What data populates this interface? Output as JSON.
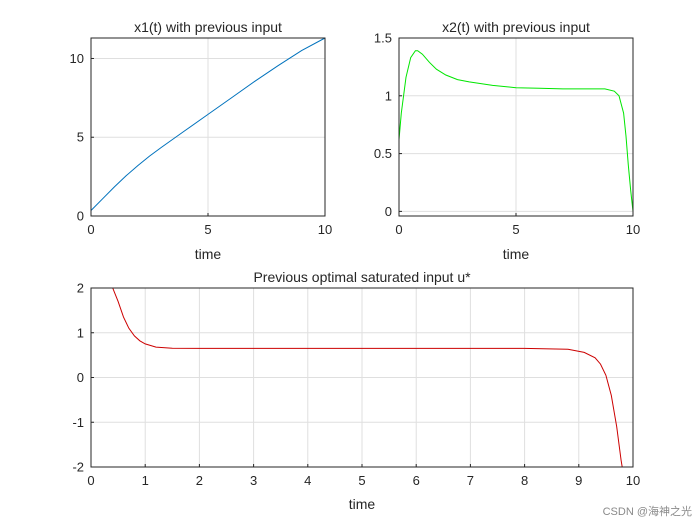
{
  "chart_data": [
    {
      "id": "x1",
      "type": "line",
      "title": "x1(t) with previous input",
      "xlabel": "time",
      "ylabel": "",
      "xlim": [
        0,
        10
      ],
      "ylim": [
        0,
        11.3
      ],
      "xticks": [
        0,
        5,
        10
      ],
      "yticks": [
        0,
        5,
        10
      ],
      "grid": true,
      "series": [
        {
          "name": "x1",
          "color": "#0072bd",
          "x": [
            0,
            0.5,
            1,
            1.5,
            2,
            2.5,
            3,
            4,
            5,
            6,
            7,
            8,
            9,
            10
          ],
          "y": [
            0.35,
            1.1,
            1.85,
            2.55,
            3.2,
            3.8,
            4.35,
            5.4,
            6.45,
            7.5,
            8.55,
            9.55,
            10.5,
            11.3
          ]
        }
      ]
    },
    {
      "id": "x2",
      "type": "line",
      "title": "x2(t) with previous input",
      "xlabel": "time",
      "ylabel": "",
      "xlim": [
        0,
        10
      ],
      "ylim": [
        -0.04,
        1.5
      ],
      "xticks": [
        0,
        5,
        10
      ],
      "yticks": [
        0,
        0.5,
        1,
        1.5
      ],
      "grid": true,
      "series": [
        {
          "name": "x2",
          "color": "#00e600",
          "x": [
            0,
            0.1,
            0.3,
            0.5,
            0.7,
            0.8,
            1,
            1.3,
            1.6,
            2,
            2.5,
            3,
            4,
            5,
            6,
            7,
            8,
            8.8,
            9.2,
            9.4,
            9.6,
            9.7,
            9.8,
            9.9,
            10
          ],
          "y": [
            0.62,
            0.85,
            1.16,
            1.33,
            1.39,
            1.39,
            1.36,
            1.29,
            1.23,
            1.18,
            1.14,
            1.12,
            1.09,
            1.07,
            1.065,
            1.06,
            1.06,
            1.06,
            1.04,
            1.0,
            0.85,
            0.65,
            0.4,
            0.18,
            0.0
          ]
        }
      ]
    },
    {
      "id": "u",
      "type": "line",
      "title": "Previous optimal saturated input u*",
      "xlabel": "time",
      "ylabel": "",
      "xlim": [
        0,
        10
      ],
      "ylim": [
        -2,
        2
      ],
      "xticks": [
        0,
        1,
        2,
        3,
        4,
        5,
        6,
        7,
        8,
        9,
        10
      ],
      "yticks": [
        -2,
        -1,
        0,
        1,
        2
      ],
      "grid": true,
      "series": [
        {
          "name": "u*",
          "color": "#cc0000",
          "x": [
            0,
            0.4,
            0.5,
            0.6,
            0.7,
            0.8,
            0.9,
            1.0,
            1.2,
            1.5,
            2,
            3,
            4,
            5,
            6,
            7,
            8,
            8.8,
            9.1,
            9.3,
            9.4,
            9.5,
            9.6,
            9.7,
            9.78,
            9.8
          ],
          "y": [
            2,
            2,
            1.7,
            1.35,
            1.1,
            0.93,
            0.82,
            0.75,
            0.68,
            0.655,
            0.65,
            0.65,
            0.65,
            0.65,
            0.65,
            0.65,
            0.65,
            0.63,
            0.56,
            0.44,
            0.3,
            0.05,
            -0.4,
            -1.1,
            -1.85,
            -2
          ]
        }
      ]
    }
  ],
  "watermark": "CSDN @海神之光"
}
